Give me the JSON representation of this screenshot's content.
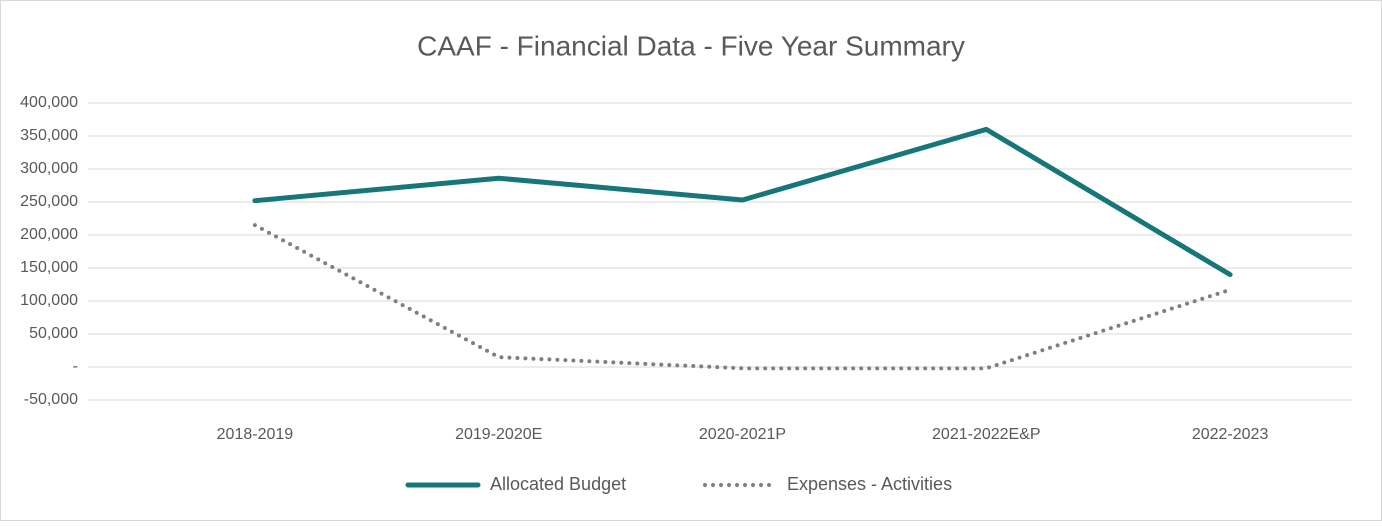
{
  "chart_data": {
    "type": "line",
    "title": "CAAF - Financial Data - Five Year Summary",
    "categories": [
      "2018-2019",
      "2019-2020E",
      "2020-2021P",
      "2021-2022E&P",
      "2022-2023"
    ],
    "series": [
      {
        "name": "Allocated Budget",
        "color": "#17767a",
        "style": "solid",
        "values": [
          252000,
          286000,
          253000,
          360000,
          140000
        ]
      },
      {
        "name": "Expenses - Activities",
        "color": "#7f7f7f",
        "style": "dotted",
        "values": [
          215000,
          15000,
          -2000,
          -2000,
          117000
        ]
      }
    ],
    "ylim": [
      -50000,
      400000
    ],
    "yticks": [
      {
        "value": -50000,
        "label": "-50,000"
      },
      {
        "value": 0,
        "label": "-"
      },
      {
        "value": 50000,
        "label": "50,000"
      },
      {
        "value": 100000,
        "label": "100,000"
      },
      {
        "value": 150000,
        "label": "150,000"
      },
      {
        "value": 200000,
        "label": "200,000"
      },
      {
        "value": 250000,
        "label": "250,000"
      },
      {
        "value": 300000,
        "label": "300,000"
      },
      {
        "value": 350000,
        "label": "350,000"
      },
      {
        "value": 400000,
        "label": "400,000"
      }
    ],
    "grid": true,
    "legend": "bottom"
  }
}
